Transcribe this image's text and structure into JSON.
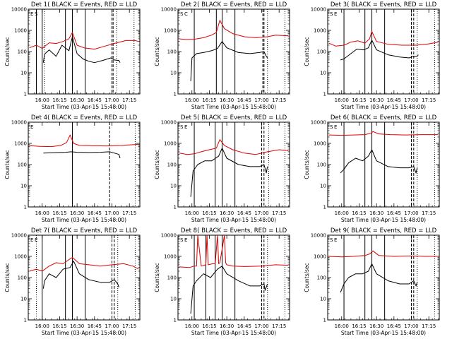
{
  "chart_data": [
    {
      "type": "line",
      "title": "Det 1( BLACK = Events, RED = LLD",
      "xlabel": "Start Time (03-Apr-15 15:48:00)",
      "ylabel": "Counts/sec",
      "y_scale": "log",
      "ylim": [
        1,
        10000
      ],
      "xlim": [
        "15:48",
        "17:24"
      ],
      "x_ticks": [
        "16:00",
        "16:15",
        "16:30",
        "16:45",
        "17:00",
        "17:15"
      ],
      "y_ticks": [
        "1",
        "10",
        "100",
        "1000",
        "10000"
      ],
      "markers": {
        "solid": [
          "15:55",
          "16:00",
          "16:20",
          "16:26",
          "16:37"
        ],
        "dashed": [
          "17:00",
          "17:01"
        ],
        "dotted": [
          "16:02",
          "17:04",
          "17:19"
        ]
      },
      "corner_labels": [
        "E",
        "S"
      ],
      "series": [
        {
          "color": "#000000",
          "x": [
            "16:01",
            "16:02",
            "16:06",
            "16:12",
            "16:17",
            "16:23",
            "16:26",
            "16:30",
            "16:35",
            "16:40",
            "16:45",
            "16:52",
            "16:59",
            "17:02",
            "17:06",
            "17:07"
          ],
          "y": [
            30,
            75,
            120,
            60,
            200,
            110,
            500,
            80,
            45,
            35,
            30,
            38,
            50,
            40,
            38,
            30
          ]
        },
        {
          "color": "#dd0000",
          "x": [
            "15:49",
            "15:55",
            "16:00",
            "16:06",
            "16:12",
            "16:18",
            "16:23",
            "16:26",
            "16:30",
            "16:36",
            "16:45",
            "16:54",
            "17:03",
            "17:12",
            "17:20",
            "17:23"
          ],
          "y": [
            150,
            200,
            140,
            260,
            240,
            300,
            400,
            800,
            200,
            150,
            130,
            180,
            250,
            330,
            330,
            300
          ]
        }
      ]
    },
    {
      "type": "line",
      "title": "Det 2( BLACK = Events, RED = LLD",
      "xlabel": "Start Time (03-Apr-15 15:48:00)",
      "ylabel": "Counts/sec",
      "y_scale": "log",
      "ylim": [
        1,
        10000
      ],
      "xlim": [
        "15:48",
        "17:24"
      ],
      "x_ticks": [
        "16:00",
        "16:15",
        "16:30",
        "16:45",
        "17:00",
        "17:15"
      ],
      "y_ticks": [
        "1",
        "10",
        "100",
        "1000",
        "10000"
      ],
      "markers": {
        "solid": [
          "16:02",
          "16:21",
          "16:26",
          "16:37"
        ],
        "dashed": [
          "17:01",
          "17:02"
        ],
        "dotted": [
          "17:05",
          "17:20"
        ]
      },
      "corner_labels": [
        "S",
        "C"
      ],
      "series": [
        {
          "color": "#000000",
          "x": [
            "15:59",
            "16:00",
            "16:04",
            "16:10",
            "16:17",
            "16:22",
            "16:26",
            "16:30",
            "16:40",
            "16:50",
            "16:58",
            "17:02",
            "17:04",
            "17:05"
          ],
          "y": [
            4,
            50,
            80,
            90,
            110,
            140,
            300,
            150,
            90,
            80,
            90,
            100,
            60,
            50
          ]
        },
        {
          "color": "#dd0000",
          "x": [
            "15:49",
            "15:55",
            "16:02",
            "16:10",
            "16:17",
            "16:21",
            "16:24",
            "16:28",
            "16:35",
            "16:45",
            "16:55",
            "17:05",
            "17:12",
            "17:23"
          ],
          "y": [
            400,
            370,
            380,
            450,
            600,
            800,
            3000,
            1200,
            700,
            500,
            450,
            500,
            600,
            550
          ]
        }
      ]
    },
    {
      "type": "line",
      "title": "Det 3( BLACK = Events, RED = LLD",
      "xlabel": "Start Time (03-Apr-15 15:48:00)",
      "ylabel": "Counts/sec",
      "y_scale": "log",
      "ylim": [
        1,
        10000
      ],
      "xlim": [
        "15:48",
        "17:24"
      ],
      "x_ticks": [
        "16:00",
        "16:15",
        "16:30",
        "16:45",
        "17:00",
        "17:15"
      ],
      "y_ticks": [
        "1",
        "10",
        "100",
        "1000",
        "10000"
      ],
      "markers": {
        "solid": [
          "16:02",
          "16:20",
          "16:26",
          "16:37"
        ],
        "dashed": [
          "17:00",
          "17:02"
        ],
        "dotted": [
          "17:05",
          "17:20"
        ]
      },
      "corner_labels": [
        "S",
        "E"
      ],
      "series": [
        {
          "color": "#000000",
          "x": [
            "15:59",
            "16:02",
            "16:08",
            "16:13",
            "16:19",
            "16:23",
            "16:26",
            "16:30",
            "16:40",
            "16:50",
            "16:58",
            "17:02",
            "17:05",
            "17:06"
          ],
          "y": [
            40,
            45,
            80,
            130,
            120,
            150,
            350,
            120,
            70,
            55,
            50,
            60,
            60,
            70
          ]
        },
        {
          "color": "#dd0000",
          "x": [
            "15:49",
            "15:55",
            "16:02",
            "16:08",
            "16:14",
            "16:20",
            "16:24",
            "16:26",
            "16:30",
            "16:40",
            "16:52",
            "17:04",
            "17:15",
            "17:23"
          ],
          "y": [
            250,
            180,
            200,
            280,
            320,
            250,
            400,
            900,
            300,
            220,
            200,
            200,
            230,
            280
          ]
        }
      ]
    },
    {
      "type": "line",
      "title": "Det 4( BLACK = Events, RED = LLD",
      "xlabel": "Start Time (03-Apr-15 15:48:00)",
      "ylabel": "Counts/sec",
      "y_scale": "log",
      "ylim": [
        1,
        10000
      ],
      "xlim": [
        "15:48",
        "17:24"
      ],
      "x_ticks": [
        "16:00",
        "16:15",
        "16:30",
        "16:45",
        "17:00",
        "17:15"
      ],
      "y_ticks": [
        "1",
        "10",
        "100",
        "1000",
        "10000"
      ],
      "markers": {
        "solid": [
          "16:26"
        ],
        "dashed": [
          "16:58"
        ],
        "dotted": [
          "17:20"
        ]
      },
      "corner_labels": [
        "E"
      ],
      "series": [
        {
          "color": "#000000",
          "x": [
            "16:01",
            "16:10",
            "16:20",
            "16:25",
            "16:30",
            "16:40",
            "16:50",
            "16:58",
            "17:02",
            "17:06",
            "17:07"
          ],
          "y": [
            350,
            360,
            380,
            400,
            380,
            370,
            380,
            400,
            350,
            300,
            200
          ]
        },
        {
          "color": "#dd0000",
          "x": [
            "15:49",
            "15:58",
            "16:08",
            "16:16",
            "16:21",
            "16:24",
            "16:27",
            "16:32",
            "16:42",
            "16:55",
            "17:08",
            "17:23"
          ],
          "y": [
            780,
            720,
            700,
            800,
            1100,
            2500,
            1000,
            800,
            780,
            760,
            800,
            900
          ]
        }
      ]
    },
    {
      "type": "line",
      "title": "Det 5( BLACK = Events, RED = LLD",
      "xlabel": "Start Time (03-Apr-15 15:48:00)",
      "ylabel": "Counts/sec",
      "y_scale": "log",
      "ylim": [
        1,
        10000
      ],
      "xlim": [
        "15:48",
        "17:24"
      ],
      "x_ticks": [
        "16:00",
        "16:15",
        "16:30",
        "16:45",
        "17:00",
        "17:15"
      ],
      "y_ticks": [
        "1",
        "10",
        "100",
        "1000",
        "10000"
      ],
      "markers": {
        "solid": [
          "16:02",
          "16:20",
          "16:26",
          "16:37"
        ],
        "dashed": [
          "17:00",
          "17:02"
        ],
        "dotted": [
          "17:06",
          "17:20"
        ]
      },
      "corner_labels": [
        "S",
        "E"
      ],
      "series": [
        {
          "color": "#000000",
          "x": [
            "15:59",
            "16:01",
            "16:05",
            "16:11",
            "16:17",
            "16:23",
            "16:26",
            "16:30",
            "16:40",
            "16:50",
            "16:58",
            "17:02",
            "17:04",
            "17:05"
          ],
          "y": [
            3,
            50,
            100,
            150,
            150,
            250,
            600,
            200,
            100,
            80,
            80,
            100,
            40,
            80
          ]
        },
        {
          "color": "#dd0000",
          "x": [
            "15:49",
            "15:56",
            "16:02",
            "16:08",
            "16:15",
            "16:21",
            "16:24",
            "16:28",
            "16:35",
            "16:45",
            "16:55",
            "17:05",
            "17:15",
            "17:23"
          ],
          "y": [
            350,
            300,
            320,
            400,
            500,
            600,
            1500,
            800,
            500,
            350,
            300,
            400,
            500,
            450
          ]
        }
      ]
    },
    {
      "type": "line",
      "title": "Det 6( BLACK = Events, RED = LLD",
      "xlabel": "Start Time (03-Apr-15 15:48:00)",
      "ylabel": "Counts/sec",
      "y_scale": "log",
      "ylim": [
        1,
        10000
      ],
      "xlim": [
        "15:48",
        "17:24"
      ],
      "x_ticks": [
        "16:00",
        "16:15",
        "16:30",
        "16:45",
        "17:00",
        "17:15"
      ],
      "y_ticks": [
        "1",
        "10",
        "100",
        "1000",
        "10000"
      ],
      "markers": {
        "solid": [
          "16:02",
          "16:20",
          "16:26",
          "16:37"
        ],
        "dashed": [
          "17:00",
          "17:02"
        ],
        "dotted": [
          "17:05",
          "17:20"
        ]
      },
      "corner_labels": [
        "S",
        "E"
      ],
      "series": [
        {
          "color": "#000000",
          "x": [
            "15:59",
            "16:02",
            "16:06",
            "16:12",
            "16:18",
            "16:23",
            "16:26",
            "16:30",
            "16:40",
            "16:50",
            "16:58",
            "17:02",
            "17:04",
            "17:05"
          ],
          "y": [
            40,
            60,
            120,
            200,
            150,
            250,
            500,
            150,
            80,
            70,
            70,
            80,
            40,
            70
          ]
        },
        {
          "color": "#dd0000",
          "x": [
            "15:49",
            "16:00",
            "16:10",
            "16:20",
            "16:25",
            "16:27",
            "16:32",
            "16:42",
            "16:55",
            "17:08",
            "17:23"
          ],
          "y": [
            2500,
            2400,
            2500,
            2600,
            3000,
            3600,
            2800,
            2600,
            2500,
            2600,
            2600
          ]
        }
      ]
    },
    {
      "type": "line",
      "title": "Det 7( BLACK = Events, RED = LLD",
      "xlabel": "Start Time (03-Apr-15 15:48:00)",
      "ylabel": "Counts/sec",
      "y_scale": "log",
      "ylim": [
        1,
        10000
      ],
      "xlim": [
        "15:48",
        "17:24"
      ],
      "x_ticks": [
        "16:00",
        "16:15",
        "16:30",
        "16:45",
        "17:00",
        "17:15"
      ],
      "y_ticks": [
        "1",
        "10",
        "100",
        "1000",
        "10000"
      ],
      "markers": {
        "solid": [
          "16:00",
          "16:20",
          "16:26",
          "16:37"
        ],
        "dashed": [
          "17:00",
          "17:02"
        ],
        "dotted": [
          "15:55",
          "17:05",
          "17:20"
        ]
      },
      "corner_labels": [
        "E",
        "E"
      ],
      "series": [
        {
          "color": "#000000",
          "x": [
            "16:01",
            "16:02",
            "16:06",
            "16:12",
            "16:18",
            "16:24",
            "16:27",
            "16:32",
            "16:40",
            "16:50",
            "16:58",
            "17:02",
            "17:05",
            "17:06"
          ],
          "y": [
            30,
            70,
            150,
            100,
            250,
            300,
            600,
            150,
            80,
            60,
            60,
            80,
            50,
            35
          ]
        },
        {
          "color": "#dd0000",
          "x": [
            "15:49",
            "15:55",
            "16:00",
            "16:06",
            "16:12",
            "16:18",
            "16:23",
            "16:26",
            "16:32",
            "16:40",
            "16:50",
            "17:00",
            "17:10",
            "17:18",
            "17:23"
          ],
          "y": [
            200,
            250,
            200,
            350,
            500,
            450,
            700,
            900,
            450,
            400,
            350,
            400,
            450,
            350,
            250
          ]
        }
      ]
    },
    {
      "type": "line",
      "title": "Det 8( BLACK = Events, RED = LLD",
      "xlabel": "Start Time (03-Apr-15 15:48:00)",
      "ylabel": "Counts/sec",
      "y_scale": "log",
      "ylim": [
        1,
        10000
      ],
      "xlim": [
        "15:48",
        "17:24"
      ],
      "x_ticks": [
        "16:00",
        "16:15",
        "16:30",
        "16:45",
        "17:00",
        "17:15"
      ],
      "y_ticks": [
        "1",
        "10",
        "100",
        "1000",
        "10000"
      ],
      "markers": {
        "solid": [
          "16:02",
          "16:12",
          "16:20",
          "16:26",
          "16:37"
        ],
        "dashed": [
          "17:00",
          "17:02"
        ],
        "dotted": [
          "17:05",
          "17:20"
        ]
      },
      "corner_labels": [
        "S",
        "E"
      ],
      "series": [
        {
          "color": "#000000",
          "x": [
            "15:59",
            "16:01",
            "16:04",
            "16:10",
            "16:16",
            "16:22",
            "16:26",
            "16:30",
            "16:40",
            "16:50",
            "16:58",
            "17:02",
            "17:03",
            "17:05"
          ],
          "y": [
            2,
            40,
            70,
            150,
            100,
            250,
            350,
            150,
            70,
            40,
            40,
            50,
            25,
            50
          ]
        },
        {
          "color": "#dd0000",
          "x": [
            "15:49",
            "15:58",
            "16:02",
            "16:04",
            "16:05",
            "16:08",
            "16:12",
            "16:13",
            "16:14",
            "16:18",
            "16:20",
            "16:22",
            "16:23",
            "16:24",
            "16:28",
            "16:29",
            "16:30",
            "16:35",
            "16:45",
            "17:00",
            "17:12",
            "17:23"
          ],
          "y": [
            320,
            300,
            350,
            350,
            10000,
            350,
            400,
            10000,
            400,
            450,
            450,
            10000,
            450,
            500,
            10000,
            500,
            400,
            350,
            330,
            350,
            400,
            380
          ]
        }
      ]
    },
    {
      "type": "line",
      "title": "Det 9( BLACK = Events, RED = LLD",
      "xlabel": "Start Time (03-Apr-15 15:48:00)",
      "ylabel": "Counts/sec",
      "y_scale": "log",
      "ylim": [
        1,
        10000
      ],
      "xlim": [
        "15:48",
        "17:24"
      ],
      "x_ticks": [
        "16:00",
        "16:15",
        "16:30",
        "16:45",
        "17:00",
        "17:15"
      ],
      "y_ticks": [
        "1",
        "10",
        "100",
        "1000",
        "10000"
      ],
      "markers": {
        "solid": [
          "16:02",
          "16:20",
          "16:26",
          "16:37"
        ],
        "dashed": [
          "17:00",
          "17:02"
        ],
        "dotted": [
          "17:05",
          "17:20"
        ]
      },
      "corner_labels": [
        "S",
        "E"
      ],
      "series": [
        {
          "color": "#000000",
          "x": [
            "15:59",
            "16:02",
            "16:06",
            "16:12",
            "16:18",
            "16:23",
            "16:26",
            "16:30",
            "16:40",
            "16:50",
            "16:58",
            "17:02",
            "17:04",
            "17:05"
          ],
          "y": [
            20,
            50,
            100,
            150,
            150,
            200,
            450,
            150,
            70,
            50,
            50,
            70,
            40,
            60
          ]
        },
        {
          "color": "#dd0000",
          "x": [
            "15:49",
            "16:00",
            "16:10",
            "16:20",
            "16:24",
            "16:27",
            "16:32",
            "16:45",
            "17:00",
            "17:12",
            "17:23"
          ],
          "y": [
            1000,
            950,
            1000,
            1100,
            1300,
            1800,
            1100,
            1000,
            1050,
            1000,
            1000
          ]
        }
      ]
    }
  ]
}
